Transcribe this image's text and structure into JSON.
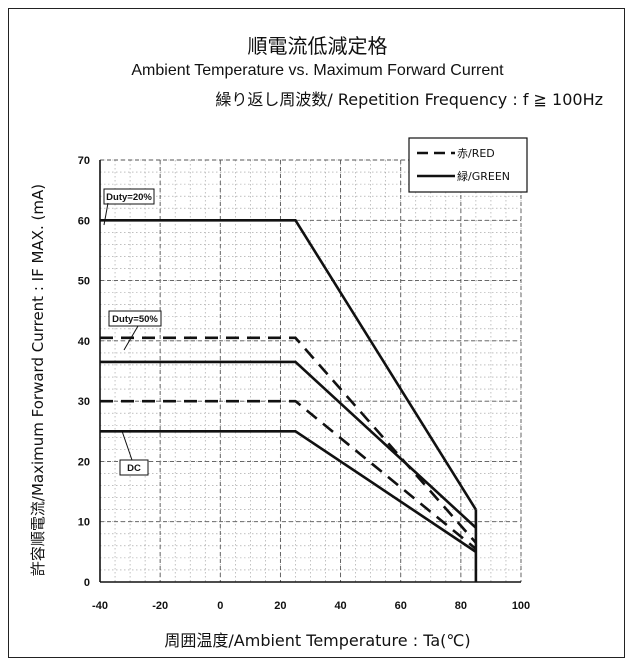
{
  "title": "順電流低減定格",
  "subtitle": "Ambient Temperature vs. Maximum Forward Current",
  "condition": "繰り返し周波数/ Repetition Frequency : f ≧ 100Hz",
  "chart_data": {
    "type": "line",
    "xlabel": "周囲温度/Ambient Temperature : Ta(℃)",
    "ylabel": "許容順電流/Maximum Forward Current : IF MAX. (mA)",
    "xlim": [
      -40,
      100
    ],
    "ylim": [
      0,
      70
    ],
    "x_ticks": [
      "-40",
      "-20",
      "0",
      "20",
      "40",
      "60",
      "80",
      "100"
    ],
    "y_ticks": [
      "0",
      "10",
      "20",
      "30",
      "40",
      "50",
      "60",
      "70"
    ],
    "grid": true,
    "legend_position": "top-right",
    "legend": [
      "赤/RED",
      "緑/GREEN"
    ],
    "annotations": [
      "Duty=20%",
      "Duty=50%",
      "DC"
    ],
    "series": [
      {
        "name": "赤/RED",
        "label": "Duty=50%",
        "style": "dashed",
        "x": [
          -40,
          25,
          85
        ],
        "y": [
          40.5,
          40.5,
          6.5
        ]
      },
      {
        "name": "赤/RED",
        "label": "DC",
        "style": "dashed",
        "x": [
          -40,
          25,
          85
        ],
        "y": [
          30,
          30,
          5.5
        ]
      },
      {
        "name": "緑/GREEN",
        "label": "Duty=20%",
        "style": "solid",
        "x": [
          -40,
          25,
          85
        ],
        "y": [
          60,
          60,
          12
        ]
      },
      {
        "name": "緑/GREEN",
        "label": "Duty=50%",
        "style": "solid",
        "x": [
          -40,
          25,
          85
        ],
        "y": [
          36.5,
          36.5,
          9
        ]
      },
      {
        "name": "緑/GREEN",
        "label": "DC",
        "style": "solid",
        "x": [
          -40,
          25,
          85
        ],
        "y": [
          25,
          25,
          5
        ]
      }
    ]
  }
}
